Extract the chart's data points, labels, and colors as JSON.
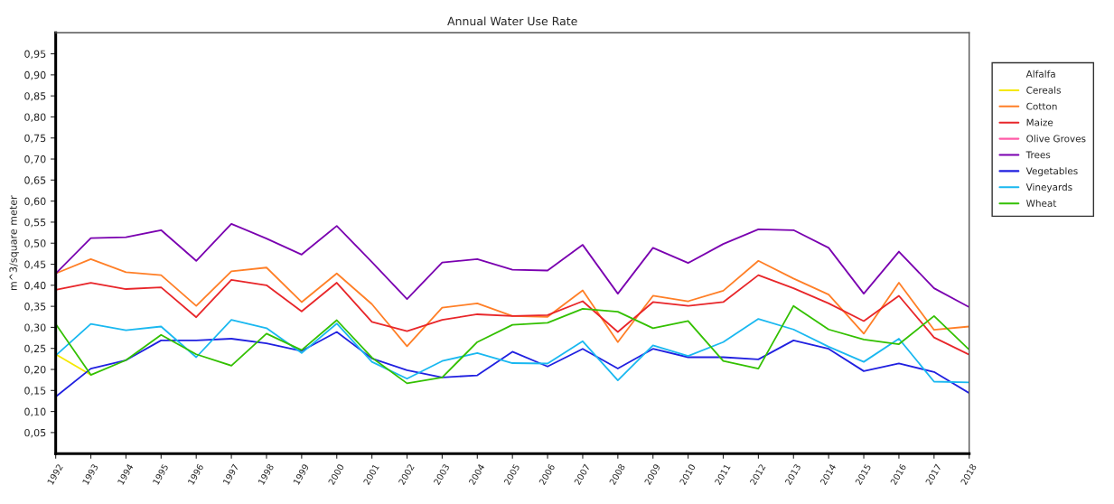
{
  "chart_data": {
    "type": "line",
    "title": "Annual Water Use Rate",
    "ylabel": "m^3/square meter",
    "categories": [
      "1992",
      "1993",
      "1994",
      "1995",
      "1996",
      "1997",
      "1998",
      "1999",
      "2000",
      "2001",
      "2002",
      "2003",
      "2004",
      "2005",
      "2006",
      "2007",
      "2008",
      "2009",
      "2010",
      "2011",
      "2012",
      "2013",
      "2014",
      "2015",
      "2016",
      "2017",
      "2018"
    ],
    "series": [
      {
        "name": "Alfalfa",
        "values": [
          null,
          null,
          null,
          null,
          null,
          null,
          null,
          null,
          null,
          null,
          null,
          null,
          null,
          null,
          null,
          null,
          null,
          null,
          null,
          null,
          null,
          null,
          null,
          null,
          null,
          null,
          null
        ]
      },
      {
        "name": "Cereals",
        "color": "#f5e800",
        "values": [
          0.236,
          0.187,
          null,
          null,
          null,
          null,
          null,
          null,
          null,
          null,
          null,
          null,
          null,
          null,
          null,
          null,
          null,
          null,
          null,
          null,
          null,
          null,
          null,
          null,
          null,
          null,
          null
        ]
      },
      {
        "name": "Cotton",
        "color": "#ff7f27",
        "values": [
          0.428,
          0.462,
          0.431,
          0.424,
          0.351,
          0.433,
          0.442,
          0.36,
          0.428,
          0.355,
          0.255,
          0.347,
          0.357,
          0.327,
          0.325,
          0.388,
          0.265,
          0.375,
          0.362,
          0.387,
          0.458,
          0.416,
          0.378,
          0.285,
          0.406,
          0.294,
          0.302
        ]
      },
      {
        "name": "Maize",
        "color": "#e8262a",
        "values": [
          0.389,
          0.406,
          0.391,
          0.395,
          0.324,
          0.413,
          0.4,
          0.338,
          0.406,
          0.313,
          0.291,
          0.318,
          0.331,
          0.327,
          0.329,
          0.362,
          0.289,
          0.36,
          0.351,
          0.36,
          0.424,
          0.393,
          0.357,
          0.315,
          0.375,
          0.276,
          0.235
        ]
      },
      {
        "name": "Olive Groves",
        "color": "#ff5ca8",
        "values": [
          null,
          null,
          null,
          null,
          null,
          null,
          null,
          null,
          null,
          null,
          null,
          null,
          null,
          null,
          null,
          null,
          null,
          null,
          null,
          null,
          null,
          null,
          null,
          null,
          null,
          null,
          null
        ]
      },
      {
        "name": "Trees",
        "color": "#7a00b0",
        "values": [
          0.428,
          0.512,
          0.514,
          0.531,
          0.458,
          0.546,
          0.511,
          0.473,
          0.541,
          0.455,
          0.367,
          0.454,
          0.462,
          0.437,
          0.435,
          0.496,
          0.38,
          0.489,
          0.453,
          0.498,
          0.533,
          0.531,
          0.489,
          0.38,
          0.48,
          0.393,
          0.348
        ]
      },
      {
        "name": "Vegetables",
        "color": "#2020e0",
        "values": [
          0.135,
          0.202,
          0.222,
          0.269,
          0.269,
          0.273,
          0.262,
          0.244,
          0.289,
          0.226,
          0.198,
          0.181,
          0.186,
          0.242,
          0.207,
          0.249,
          0.202,
          0.249,
          0.229,
          0.229,
          0.224,
          0.269,
          0.249,
          0.196,
          0.214,
          0.194,
          0.144
        ]
      },
      {
        "name": "Vineyards",
        "color": "#1ab8f0",
        "values": [
          0.233,
          0.308,
          0.293,
          0.302,
          0.229,
          0.318,
          0.298,
          0.239,
          0.309,
          0.218,
          0.178,
          0.22,
          0.239,
          0.215,
          0.214,
          0.267,
          0.174,
          0.257,
          0.232,
          0.265,
          0.32,
          0.295,
          0.254,
          0.218,
          0.273,
          0.171,
          0.169
        ]
      },
      {
        "name": "Wheat",
        "color": "#33c000",
        "values": [
          0.308,
          0.187,
          0.222,
          0.282,
          0.236,
          0.209,
          0.285,
          0.246,
          0.317,
          0.228,
          0.167,
          0.181,
          0.265,
          0.306,
          0.311,
          0.344,
          0.337,
          0.298,
          0.315,
          0.22,
          0.202,
          0.351,
          0.295,
          0.271,
          0.26,
          0.327,
          0.247
        ]
      }
    ],
    "ylim": [
      0,
      1
    ],
    "yticks": [
      {
        "value": 0.05,
        "label": "0,05"
      },
      {
        "value": 0.1,
        "label": "0,10"
      },
      {
        "value": 0.15,
        "label": "0,15"
      },
      {
        "value": 0.2,
        "label": "0,20"
      },
      {
        "value": 0.25,
        "label": "0,25"
      },
      {
        "value": 0.3,
        "label": "0,30"
      },
      {
        "value": 0.35,
        "label": "0,35"
      },
      {
        "value": 0.4,
        "label": "0,40"
      },
      {
        "value": 0.45,
        "label": "0,45"
      },
      {
        "value": 0.5,
        "label": "0,50"
      },
      {
        "value": 0.55,
        "label": "0,55"
      },
      {
        "value": 0.6,
        "label": "0,60"
      },
      {
        "value": 0.65,
        "label": "0,65"
      },
      {
        "value": 0.7,
        "label": "0,70"
      },
      {
        "value": 0.75,
        "label": "0,75"
      },
      {
        "value": 0.8,
        "label": "0,80"
      },
      {
        "value": 0.85,
        "label": "0,85"
      },
      {
        "value": 0.9,
        "label": "0,90"
      },
      {
        "value": 0.95,
        "label": "0,95"
      }
    ],
    "grid": false,
    "legend": "right",
    "marker": "none",
    "line_style": "solid"
  }
}
